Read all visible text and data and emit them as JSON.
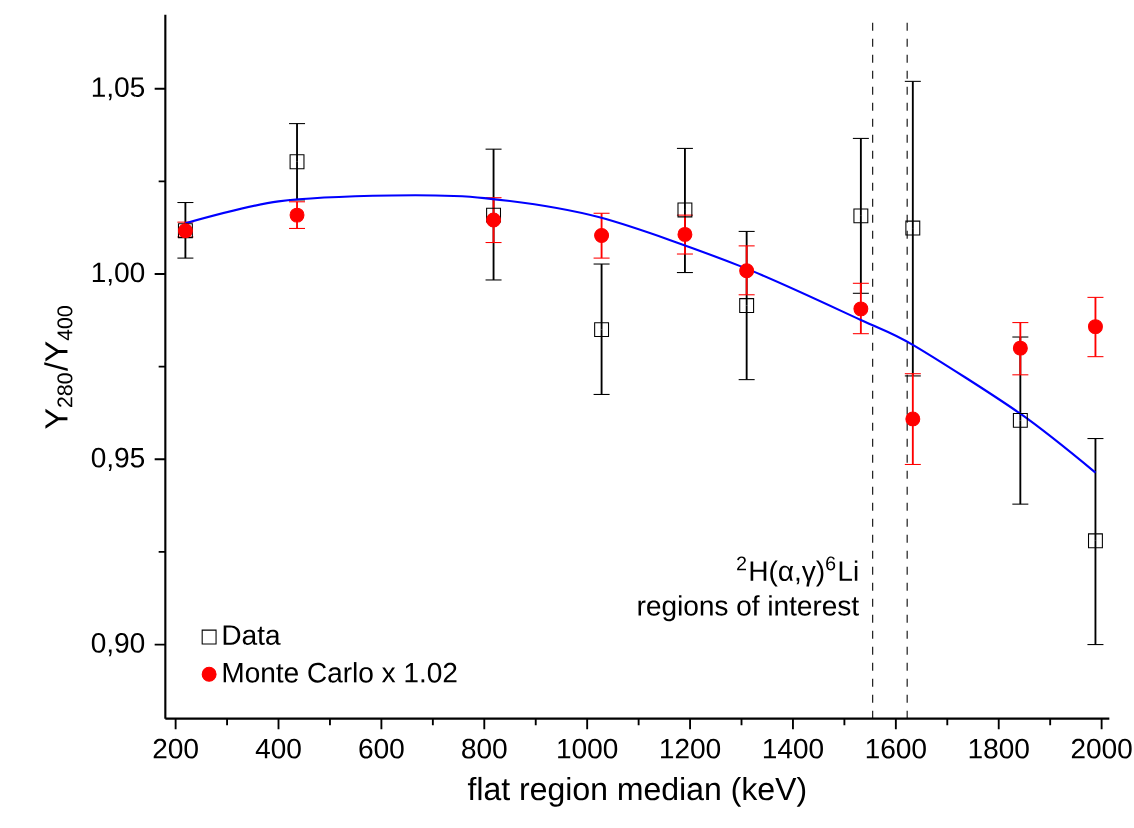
{
  "chart_data": {
    "type": "scatter",
    "xlabel": "flat region median (keV)",
    "ylabel": "Y$_{280}$/Y$_{400}$",
    "xlim": [
      180,
      2015
    ],
    "ylim": [
      0.88,
      1.07
    ],
    "xticks": [
      200,
      400,
      600,
      800,
      1000,
      1200,
      1400,
      1600,
      1800,
      2000
    ],
    "yticks": [
      {
        "value": 0.9,
        "label": "0,90"
      },
      {
        "value": 0.95,
        "label": "0,95"
      },
      {
        "value": 1.0,
        "label": "1,00"
      },
      {
        "value": 1.05,
        "label": "1,05"
      }
    ],
    "x": [
      219,
      436,
      818,
      1028,
      1190,
      1310,
      1532,
      1633,
      1842,
      1988
    ],
    "series": [
      {
        "name": "Data",
        "color": "#000000",
        "marker": "square",
        "values": [
          1.0117,
          1.0303,
          1.0159,
          0.985,
          1.0173,
          0.9915,
          1.0157,
          1.0124,
          0.9605,
          0.928
        ],
        "errors": [
          [
            1.0043,
            1.0193
          ],
          [
            1.02,
            1.0406
          ],
          [
            0.9984,
            1.0337
          ],
          [
            0.9675,
            1.0027
          ],
          [
            1.0004,
            1.0339
          ],
          [
            0.9715,
            1.0115
          ],
          [
            0.9948,
            1.0366
          ],
          [
            0.9725,
            1.052
          ],
          [
            0.9379,
            0.983
          ],
          [
            0.9,
            0.9556
          ]
        ]
      },
      {
        "name": "Monte Carlo x 1.02",
        "color": "#ff0000",
        "marker": "circle",
        "values": [
          1.0117,
          1.0159,
          1.0146,
          1.0104,
          1.0107,
          1.0009,
          0.9906,
          0.9609,
          0.98,
          0.9858
        ],
        "errors": [
          [
            1.01,
            1.014
          ],
          [
            1.0123,
            1.0195
          ],
          [
            1.0085,
            1.0206
          ],
          [
            1.0043,
            1.0164
          ],
          [
            1.0054,
            1.0159
          ],
          [
            0.9944,
            1.0076
          ],
          [
            0.9839,
            0.9975
          ],
          [
            0.9486,
            0.9731
          ],
          [
            0.9728,
            0.9869
          ],
          [
            0.9777,
            0.9937
          ]
        ]
      },
      {
        "type": "line",
        "color": "#0000ff",
        "x": [
          219,
          400,
          620,
          800,
          1024,
          1300,
          1532,
          1633,
          1842,
          1988
        ],
        "values": [
          1.0137,
          1.0196,
          1.0212,
          1.0205,
          1.0153,
          1.002,
          0.9876,
          0.9809,
          0.9623,
          0.9464
        ]
      }
    ],
    "ref_lines": [
      {
        "axis": "x",
        "value": 1555,
        "color": "#000000",
        "line_style": "dashed"
      },
      {
        "axis": "x",
        "value": 1622,
        "color": "#000000",
        "line_style": "dashed"
      }
    ],
    "annotations": [
      "$^{2}$H(α,γ)$^{6}$Li",
      "regions of interest"
    ],
    "legend": "bottom left",
    "grid": false
  }
}
